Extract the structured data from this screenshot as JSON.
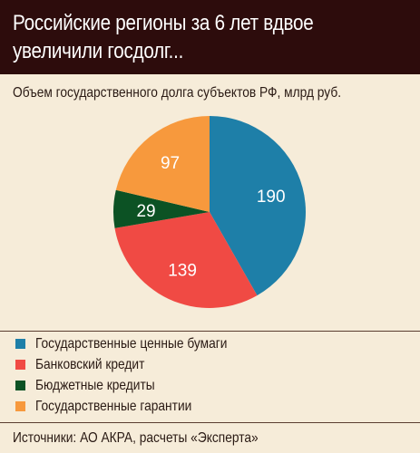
{
  "header": {
    "title_line1": "Российские регионы за 6 лет вдвое",
    "title_line2": "увеличили госдолг..."
  },
  "subtitle": "Объем государственного долга субъектов РФ, млрд руб.",
  "chart_data": {
    "type": "pie",
    "title": "Объем государственного долга субъектов РФ, млрд руб.",
    "slices": [
      {
        "name": "Государственные ценные бумаги",
        "value": 190,
        "label": "190",
        "color": "#1e7fa8"
      },
      {
        "name": "Банковский кредит",
        "value": 139,
        "label": "139",
        "color": "#f04a44"
      },
      {
        "name": "Бюджетные кредиты",
        "value": 29,
        "label": "29",
        "color": "#0c5224"
      },
      {
        "name": "Государственные гарантии",
        "value": 97,
        "label": "97",
        "color": "#f7993d"
      }
    ],
    "legend_position": "bottom"
  },
  "source": "Источники: АО АКРА, расчеты «Эксперта»"
}
